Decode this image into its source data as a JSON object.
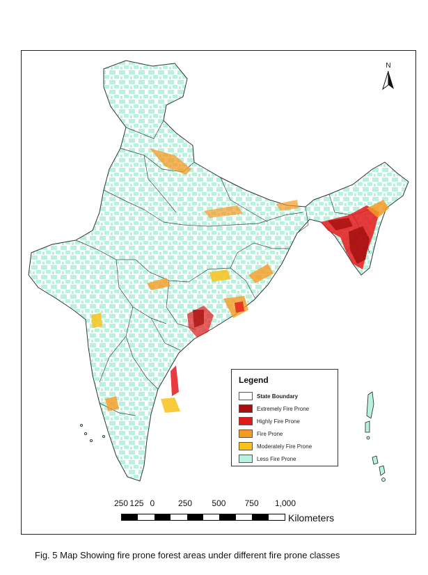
{
  "map": {
    "north_label": "N",
    "colors": {
      "extremely": "#a50f0f",
      "highly": "#e31a1c",
      "fire": "#f59a23",
      "moderately": "#f7c21b",
      "less": "#b8f2dd",
      "boundary": "#333333"
    }
  },
  "legend": {
    "title": "Legend",
    "items": [
      {
        "label": "State Boundary",
        "color": "#ffffff",
        "bold": true
      },
      {
        "label": "Extremely Fire Prone",
        "color": "#a50f0f"
      },
      {
        "label": "Highly Fire Prone",
        "color": "#e31a1c"
      },
      {
        "label": "Fire Prone",
        "color": "#f59a23"
      },
      {
        "label": "Moderately Fire Prone",
        "color": "#f7c21b"
      },
      {
        "label": "Less Fire Prone",
        "color": "#b8f2dd"
      }
    ]
  },
  "scale_bar": {
    "labels": [
      "250",
      "125",
      "0",
      "250",
      "500",
      "750",
      "1,000"
    ],
    "unit": "Kilometers"
  },
  "caption": "Fig. 5 Map Showing fire prone forest areas under different fire prone classes"
}
